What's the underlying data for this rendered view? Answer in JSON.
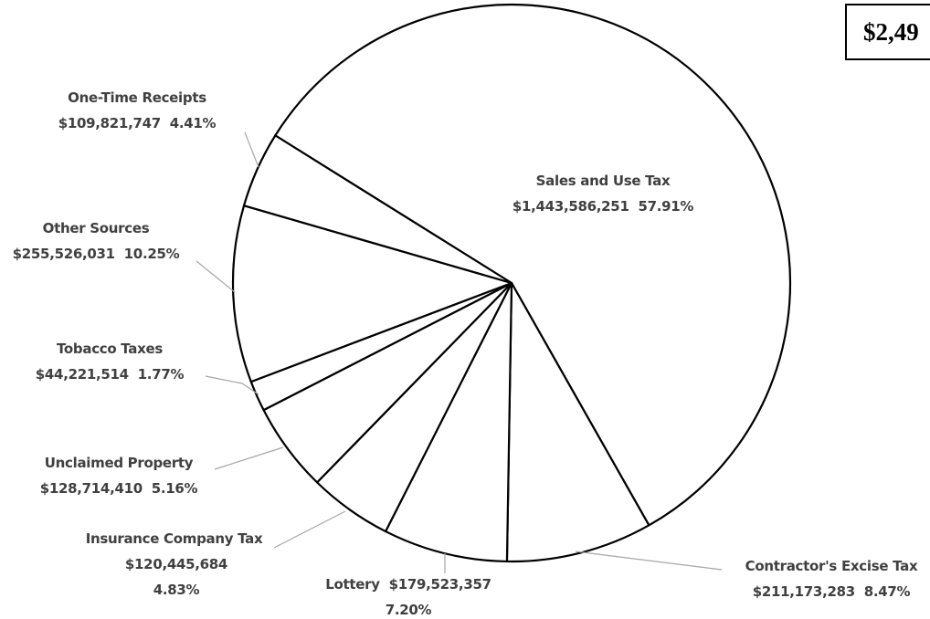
{
  "chart_data": {
    "type": "pie",
    "total_label": "$2,49",
    "categories": [
      "Sales and Use Tax",
      "Contractor's Excise Tax",
      "Lottery",
      "Insurance Company Tax",
      "Unclaimed Property",
      "Tobacco Taxes",
      "Other Sources",
      "One-Time Receipts"
    ],
    "values": [
      1443586251,
      211173283,
      179523357,
      120445684,
      128714410,
      44221514,
      255526031,
      109821747
    ],
    "value_labels": [
      "$1,443,586,251",
      "$211,173,283",
      "$179,523,357",
      "$120,445,684",
      "$128,714,410",
      "$44,221,514",
      "$255,526,031",
      "$109,821,747"
    ],
    "percents": [
      57.91,
      8.47,
      7.2,
      4.83,
      5.16,
      1.77,
      10.25,
      4.41
    ],
    "percent_labels": [
      "57.91%",
      "8.47%",
      "7.20%",
      "4.83%",
      "5.16%",
      "1.77%",
      "10.25%",
      "4.41%"
    ],
    "color": "#ffffff"
  }
}
